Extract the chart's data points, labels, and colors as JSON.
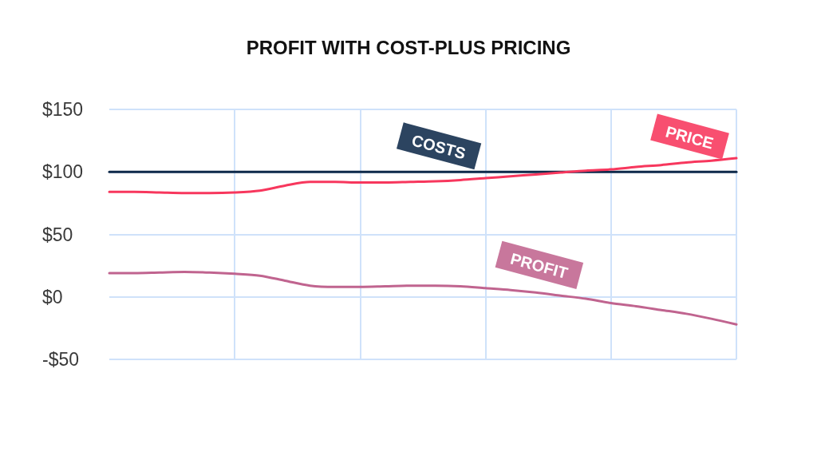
{
  "chart_data": {
    "type": "line",
    "title": "PROFIT WITH COST-PLUS PRICING",
    "categories": [
      null,
      null,
      null,
      null,
      null,
      null,
      null,
      null,
      null,
      null,
      null,
      null,
      null,
      null,
      null,
      null,
      null,
      null,
      null,
      null,
      null,
      null,
      null,
      null,
      null,
      null
    ],
    "series": [
      {
        "name": "COSTS",
        "color": "#0f2a4a",
        "values": [
          100,
          100,
          100,
          100,
          100,
          100,
          100,
          100,
          100,
          100,
          100,
          100,
          100,
          100,
          100,
          100,
          100,
          100,
          100,
          100,
          100,
          100,
          100,
          100,
          100,
          100
        ]
      },
      {
        "name": "PRICE",
        "color": "#f7375d",
        "values": [
          84,
          84,
          83.5,
          83,
          83,
          83.5,
          85,
          89,
          92,
          92,
          91.5,
          91.5,
          92,
          92.5,
          93.5,
          95,
          96.5,
          98,
          99.5,
          101,
          102,
          104,
          105.5,
          107.5,
          109,
          111
        ]
      },
      {
        "name": "PROFIT",
        "color": "#c0648f",
        "values": [
          19,
          19,
          19.5,
          20,
          19.5,
          18.5,
          17,
          13,
          9,
          8,
          8,
          8.5,
          9,
          9,
          8.5,
          7,
          5.5,
          3.5,
          1,
          -1.5,
          -5,
          -7.5,
          -10.5,
          -13.5,
          -17.5,
          -22
        ]
      }
    ],
    "ylim": [
      -50,
      150
    ],
    "yticks": [
      {
        "value": -50,
        "label": "-$50"
      },
      {
        "value": 0,
        "label": "$0"
      },
      {
        "value": 50,
        "label": "$50"
      },
      {
        "value": 100,
        "label": "$100"
      },
      {
        "value": 150,
        "label": "$150"
      }
    ],
    "grid": true,
    "marker": "none",
    "line_style": "solid"
  }
}
